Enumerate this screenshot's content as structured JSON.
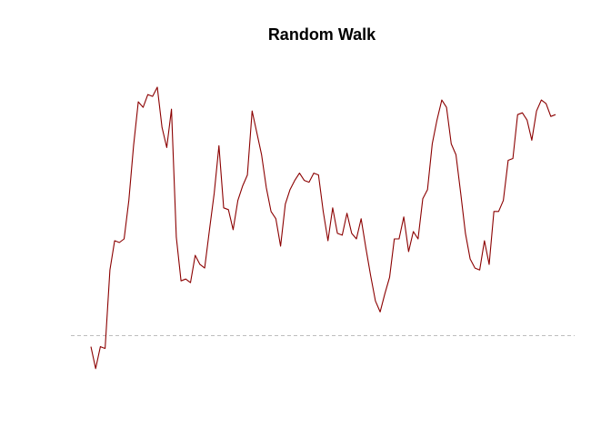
{
  "chart_data": {
    "type": "line",
    "title": "Random Walk",
    "xlabel": "",
    "ylabel": "",
    "axes_visible": false,
    "grid": false,
    "reference_line": {
      "y": 0,
      "style": "dashed",
      "color": "#bebebe"
    },
    "series": [
      {
        "color": "#8b0000",
        "values": [
          -0.3,
          -0.9,
          -0.3,
          -0.35,
          1.8,
          2.6,
          2.55,
          2.65,
          3.7,
          5.2,
          6.4,
          6.25,
          6.6,
          6.55,
          6.8,
          5.7,
          5.15,
          6.2,
          2.7,
          1.5,
          1.55,
          1.45,
          2.2,
          1.95,
          1.85,
          2.9,
          3.9,
          5.2,
          3.5,
          3.45,
          2.9,
          3.7,
          4.1,
          4.4,
          6.15,
          5.55,
          4.95,
          4.05,
          3.4,
          3.2,
          2.45,
          3.6,
          4.0,
          4.25,
          4.45,
          4.25,
          4.2,
          4.45,
          4.4,
          3.4,
          2.6,
          3.5,
          2.8,
          2.75,
          3.35,
          2.8,
          2.65,
          3.2,
          2.4,
          1.65,
          0.95,
          0.65,
          1.15,
          1.6,
          2.65,
          2.65,
          3.25,
          2.3,
          2.85,
          2.65,
          3.75,
          4.0,
          5.25,
          5.9,
          6.45,
          6.25,
          5.25,
          4.95,
          3.9,
          2.8,
          2.1,
          1.85,
          1.8,
          2.6,
          1.95,
          3.4,
          3.4,
          3.7,
          4.8,
          4.85,
          6.05,
          6.1,
          5.9,
          5.35,
          6.15,
          6.45,
          6.35,
          6.0,
          6.05
        ]
      }
    ],
    "ylim": [
      -2,
      6.95
    ],
    "colors": {
      "line": "#8b0000",
      "reference": "#bebebe",
      "background": "#ffffff"
    }
  }
}
